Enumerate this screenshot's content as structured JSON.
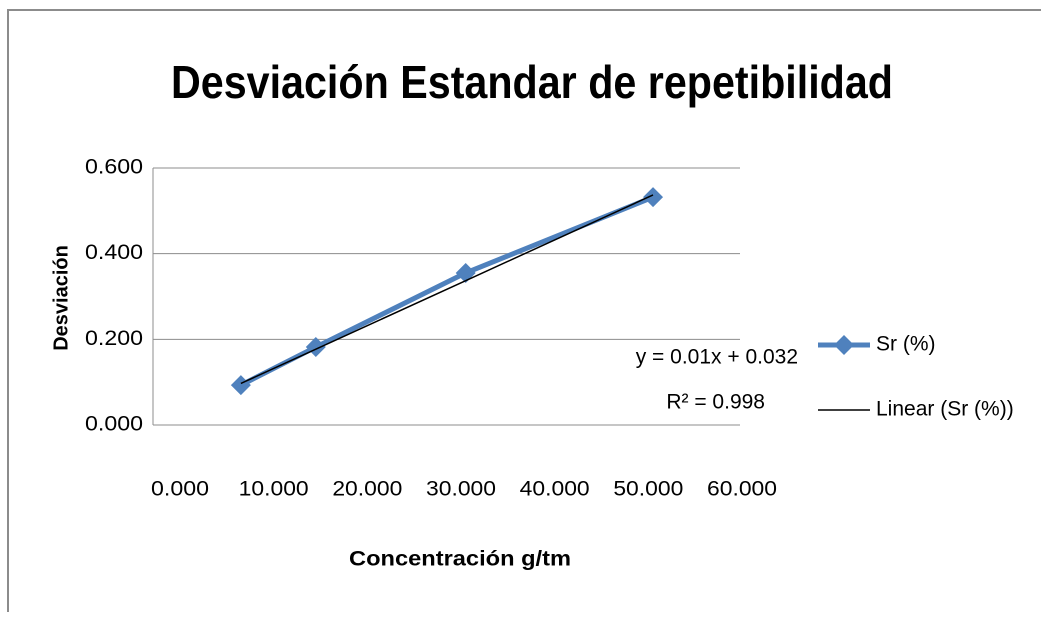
{
  "chart_data": {
    "type": "scatter",
    "title": "Desviación Estandar de repetibilidad",
    "xlabel": "Concentración g/tm",
    "ylabel": "Desviación",
    "x": [
      6.5,
      14.5,
      30.5,
      50.5
    ],
    "series": [
      {
        "name": "Sr (%)",
        "color": "#4f81bd",
        "values": [
          0.093,
          0.182,
          0.355,
          0.532
        ],
        "marker": "diamond"
      },
      {
        "name": "Linear (Sr (%))",
        "color": "#000000",
        "values": [
          0.097,
          0.177,
          0.337,
          0.537
        ],
        "marker": "none"
      }
    ],
    "annotations": [
      "y = 0.01x + 0.032",
      "R² = 0.998"
    ],
    "xlim": [
      0,
      60
    ],
    "xticks": [
      {
        "value": 0,
        "label": "0.000"
      },
      {
        "value": 10,
        "label": "10.000"
      },
      {
        "value": 20,
        "label": "20.000"
      },
      {
        "value": 30,
        "label": "30.000"
      },
      {
        "value": 40,
        "label": "40.000"
      },
      {
        "value": 50,
        "label": "50.000"
      },
      {
        "value": 60,
        "label": "60.000"
      }
    ],
    "ylim": [
      0,
      0.6
    ],
    "yticks": [
      {
        "value": 0,
        "label": "0.000"
      },
      {
        "value": 0.2,
        "label": "0.200"
      },
      {
        "value": 0.4,
        "label": "0.400"
      },
      {
        "value": 0.6,
        "label": "0.600"
      }
    ],
    "grid": true,
    "legend": "right"
  }
}
